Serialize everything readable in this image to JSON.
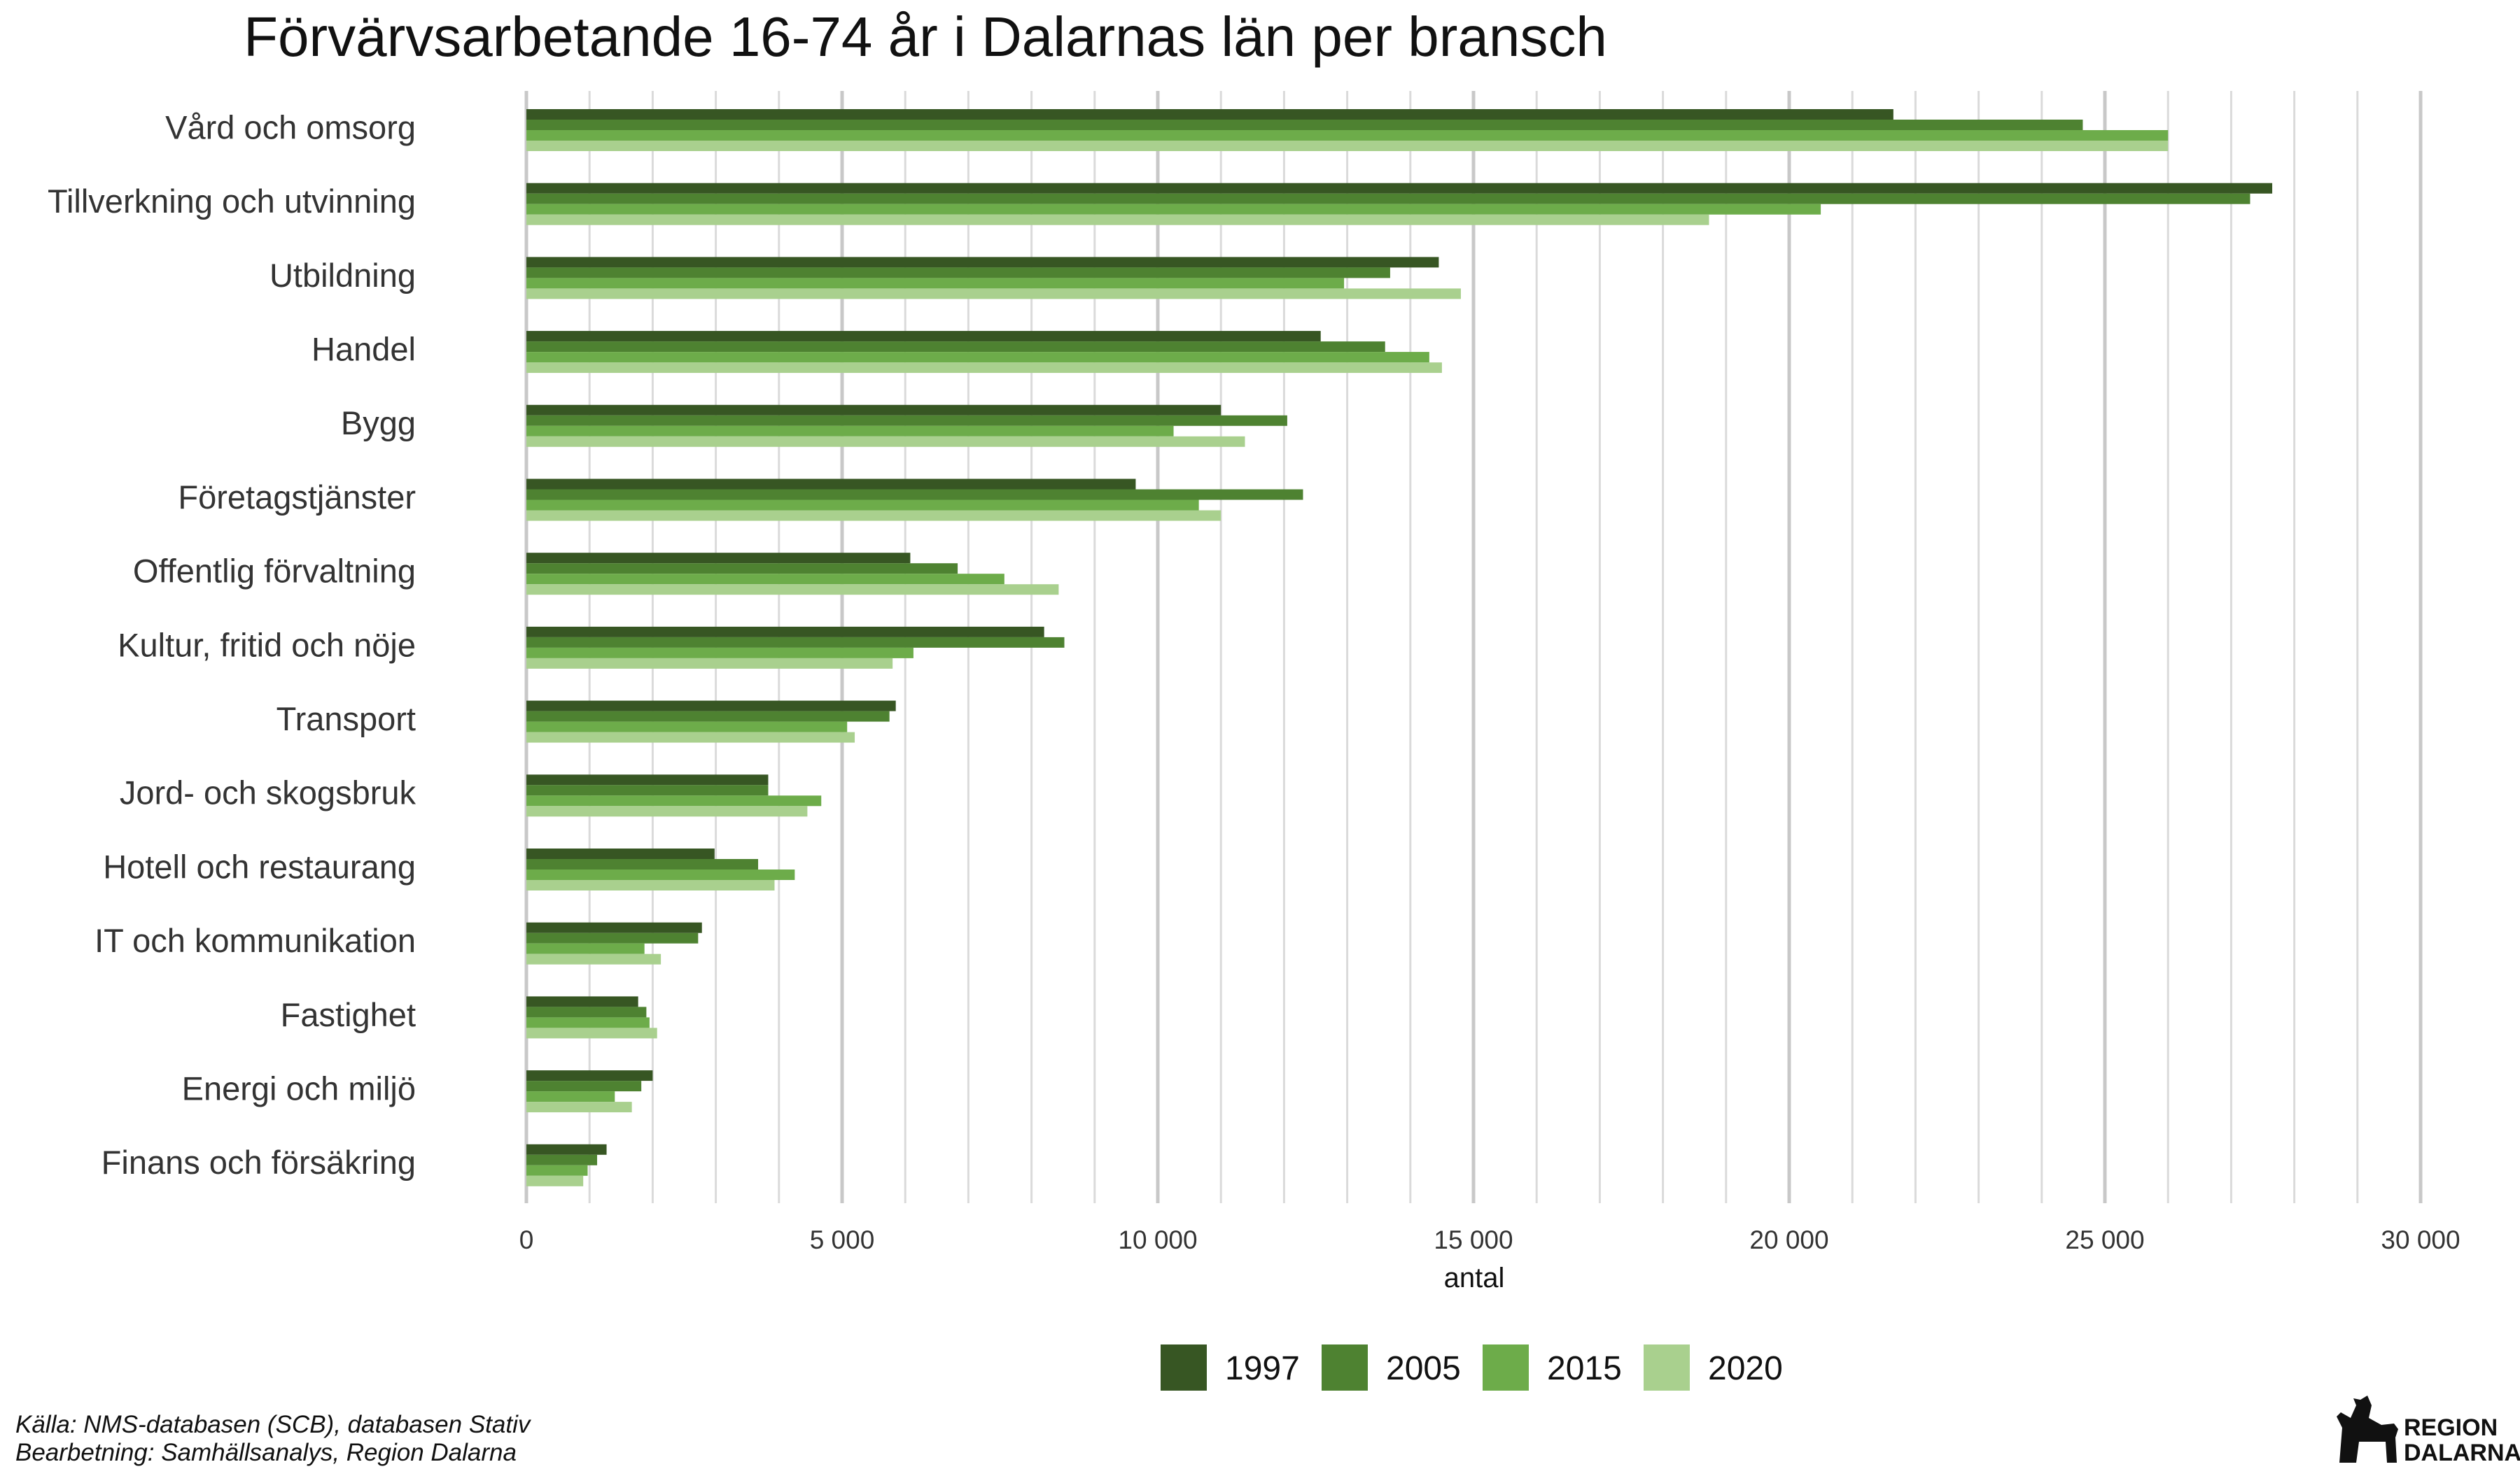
{
  "chart_data": {
    "type": "bar",
    "orientation": "horizontal",
    "title": "Förvärvsarbetande 16-74 år i Dalarnas län per bransch",
    "xlabel": "antal",
    "ylabel": "",
    "xlim": [
      0,
      30000
    ],
    "x_ticks": [
      0,
      5000,
      10000,
      15000,
      20000,
      25000,
      30000
    ],
    "x_tick_labels": [
      "0",
      "5 000",
      "10 000",
      "15 000",
      "20 000",
      "25 000",
      "30 000"
    ],
    "grid": true,
    "legend_position": "bottom",
    "categories": [
      "Vård och omsorg",
      "Tillverkning och utvinning",
      "Utbildning",
      "Handel",
      "Bygg",
      "Företagstjänster",
      "Offentlig förvaltning",
      "Kultur, fritid och nöje",
      "Transport",
      "Jord- och skogsbruk",
      "Hotell och restaurang",
      "IT och kommunikation",
      "Fastighet",
      "Energi och miljö",
      "Finans och försäkring"
    ],
    "series": [
      {
        "name": "1997",
        "color": "#375623",
        "values": [
          21650,
          27650,
          14450,
          12580,
          11000,
          9650,
          6080,
          8200,
          5850,
          3830,
          2980,
          2780,
          1770,
          2000,
          1270
        ]
      },
      {
        "name": "2005",
        "color": "#4e8231",
        "values": [
          24650,
          27300,
          13680,
          13600,
          12050,
          12300,
          6830,
          8520,
          5750,
          3830,
          3670,
          2720,
          1900,
          1820,
          1120
        ]
      },
      {
        "name": "2015",
        "color": "#6dac4a",
        "values": [
          26000,
          20500,
          12950,
          14300,
          10250,
          10650,
          7570,
          6130,
          5080,
          4670,
          4250,
          1870,
          1950,
          1400,
          970
        ]
      },
      {
        "name": "2020",
        "color": "#a9d08e",
        "values": [
          26000,
          18730,
          14800,
          14500,
          11380,
          11000,
          8430,
          5800,
          5200,
          4450,
          3930,
          2130,
          2070,
          1670,
          900
        ]
      }
    ]
  },
  "source": {
    "line1": "Källa: NMS-databasen (SCB), databasen Stativ",
    "line2": "Bearbetning: Samhällsanalys, Region Dalarna"
  },
  "logo": {
    "line1": "REGION",
    "line2": "DALARNA",
    "icon": "dalahorse-icon"
  }
}
